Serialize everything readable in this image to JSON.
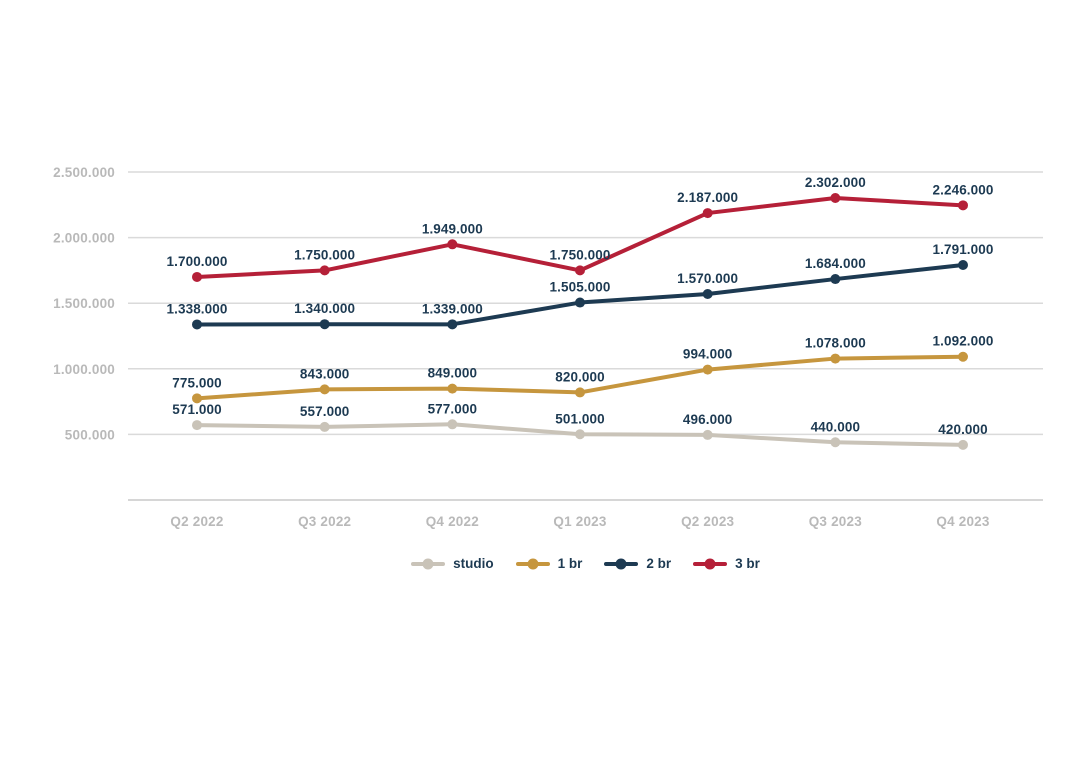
{
  "page": {
    "background": "#ffffff"
  },
  "chart_data": {
    "type": "line",
    "title": "",
    "categories": [
      "Q2 2022",
      "Q3 2022",
      "Q4 2022",
      "Q1 2023",
      "Q2 2023",
      "Q3 2023",
      "Q4 2023"
    ],
    "series": [
      {
        "name": "studio",
        "color": "#c9c3b8",
        "values": [
          571000,
          557000,
          577000,
          501000,
          496000,
          440000,
          420000
        ],
        "labels": [
          "571.000",
          "557.000",
          "577.000",
          "501.000",
          "496.000",
          "440.000",
          "420.000"
        ]
      },
      {
        "name": "1 br",
        "color": "#c6963e",
        "values": [
          775000,
          843000,
          849000,
          820000,
          994000,
          1078000,
          1092000
        ],
        "labels": [
          "775.000",
          "843.000",
          "849.000",
          "820.000",
          "994.000",
          "1.078.000",
          "1.092.000"
        ]
      },
      {
        "name": "2 br",
        "color": "#1d3a52",
        "values": [
          1338000,
          1340000,
          1339000,
          1505000,
          1570000,
          1684000,
          1791000
        ],
        "labels": [
          "1.338.000",
          "1.340.000",
          "1.339.000",
          "1.505.000",
          "1.570.000",
          "1.684.000",
          "1.791.000"
        ]
      },
      {
        "name": "3 br",
        "color": "#b52038",
        "values": [
          1700000,
          1750000,
          1949000,
          1750000,
          2187000,
          2302000,
          2246000
        ],
        "labels": [
          "1.700.000",
          "1.750.000",
          "1.949.000",
          "1.750.000",
          "2.187.000",
          "2.302.000",
          "2.246.000"
        ]
      }
    ],
    "y_axis": {
      "min": 0,
      "max": 2500000,
      "ticks": [
        {
          "value": 500000,
          "label": "500.000"
        },
        {
          "value": 1000000,
          "label": "1.000.000"
        },
        {
          "value": 1500000,
          "label": "1.500.000"
        },
        {
          "value": 2000000,
          "label": "2.000.000"
        },
        {
          "value": 2500000,
          "label": "2.500.000"
        }
      ]
    },
    "legend": {
      "position": "bottom"
    },
    "grid": true,
    "styles": {
      "data_label_color": "#1d3a52",
      "axis_tick_color": "#b9b9b9",
      "gridline_color": "#dadada",
      "axis_line_color": "#c9c9c9"
    }
  }
}
